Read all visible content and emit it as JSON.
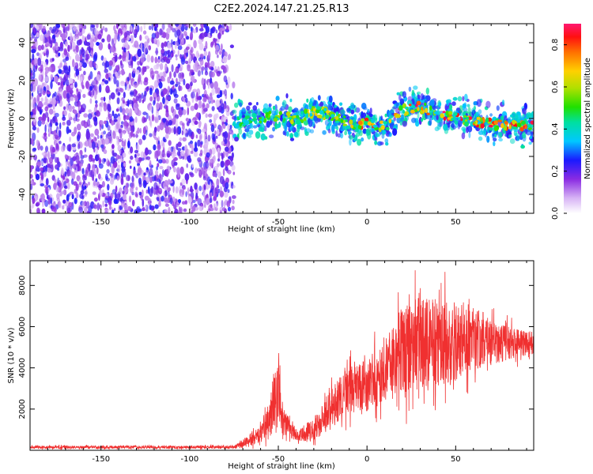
{
  "title": "C2E2.2024.147.21.25.R13",
  "chart_data": [
    {
      "type": "heatmap",
      "xlabel": "Height of straight line (km)",
      "ylabel": "Frequency (Hz)",
      "xlim": [
        -190,
        94
      ],
      "ylim": [
        -50,
        50
      ],
      "xticks": [
        -150,
        -100,
        -50,
        0,
        50
      ],
      "yticks": [
        -40,
        -20,
        0,
        20,
        40
      ],
      "colorbar": {
        "label": "Normalized spectral amplitude",
        "range": [
          0.0,
          0.9
        ],
        "ticks": [
          "0.0",
          "0.2",
          "0.4",
          "0.6",
          "0.8"
        ]
      },
      "regions": [
        {
          "x": [
            -190,
            -75
          ],
          "description": "broadband noise",
          "amplitude": [
            0.05,
            0.25
          ]
        },
        {
          "x": [
            -75,
            94
          ],
          "description": "signal band",
          "amplitude": [
            0.2,
            0.9
          ]
        }
      ],
      "center_frequency": {
        "x": [
          -75,
          -60,
          -50,
          -40,
          -30,
          -20,
          -10,
          0,
          10,
          20,
          30,
          40,
          50,
          60,
          70,
          80,
          94
        ],
        "y": [
          -2,
          0,
          2,
          -1,
          4,
          2,
          -3,
          -2,
          -5,
          4,
          6,
          3,
          0,
          -1,
          -3,
          -4,
          -3
        ]
      }
    },
    {
      "type": "line",
      "xlabel": "Height of straight line (km)",
      "ylabel": "SNR (10 * v/v)",
      "xlim": [
        -190,
        94
      ],
      "ylim": [
        0,
        9200
      ],
      "xticks": [
        -150,
        -100,
        -50,
        0,
        50
      ],
      "yticks": [
        2000,
        4000,
        6000,
        8000
      ],
      "color": "#f03030",
      "series_envelope": {
        "x": [
          -190,
          -75,
          -70,
          -60,
          -55,
          -52,
          -50,
          -48,
          -40,
          -30,
          -20,
          -10,
          0,
          10,
          15,
          20,
          30,
          40,
          50,
          60,
          70,
          80,
          94
        ],
        "mean": [
          150,
          150,
          300,
          800,
          1500,
          2500,
          2800,
          1500,
          700,
          1000,
          2000,
          3000,
          3200,
          3800,
          4500,
          4800,
          5200,
          5200,
          5200,
          5400,
          5300,
          5200,
          5200
        ],
        "amplitude": [
          120,
          120,
          300,
          700,
          1400,
          3000,
          2800,
          1200,
          500,
          900,
          1600,
          2000,
          2200,
          2500,
          3000,
          3600,
          3800,
          3600,
          3300,
          2600,
          2000,
          1300,
          900
        ]
      }
    }
  ]
}
